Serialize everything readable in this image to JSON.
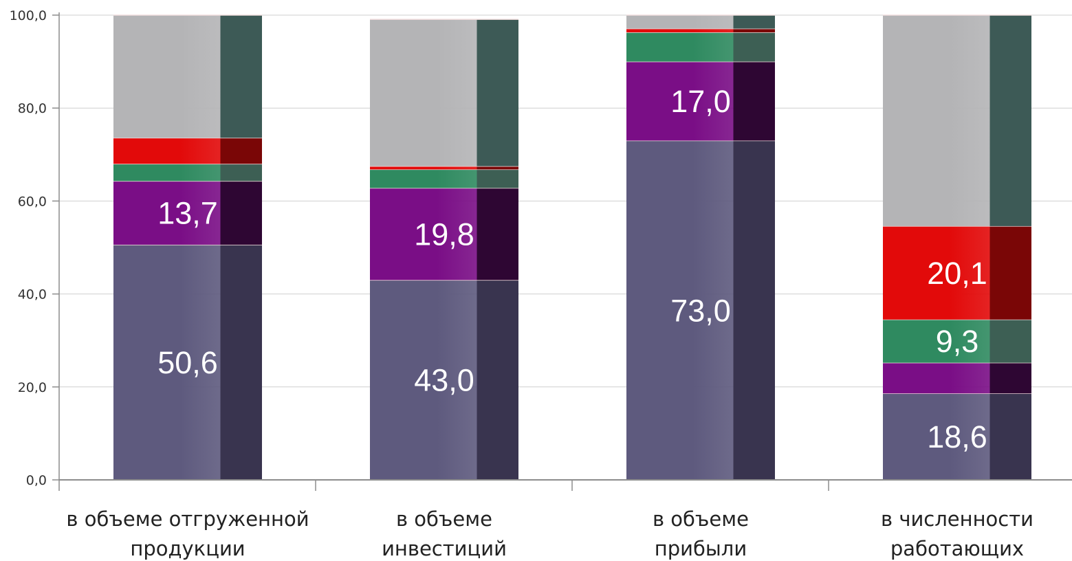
{
  "chart_data": {
    "type": "bar",
    "stacked": true,
    "categories": [
      [
        "в объеме отгруженной",
        "продукции"
      ],
      [
        "в объеме",
        "инвестиций"
      ],
      [
        "в объеме",
        "прибыли"
      ],
      [
        "в численности",
        "работающих"
      ]
    ],
    "ylim": [
      0,
      100
    ],
    "yticks": [
      "0,0",
      "20,0",
      "40,0",
      "60,0",
      "80,0",
      "100,0"
    ],
    "ytick_values": [
      0,
      20,
      40,
      60,
      80,
      100
    ],
    "grid": true,
    "series": [
      {
        "color": "#5e5a7e",
        "dark": "#39344f",
        "values": [
          50.6,
          43.0,
          73.0,
          18.6
        ],
        "labels": [
          "50,6",
          "43,0",
          "73,0",
          "18,6"
        ]
      },
      {
        "color": "#7a0e86",
        "dark": "#2e0633",
        "values": [
          13.7,
          19.8,
          17.0,
          6.6
        ],
        "labels": [
          "13,7",
          "19,8",
          "17,0",
          ""
        ]
      },
      {
        "color": "#2f8a60",
        "dark": "#3d5f54",
        "values": [
          3.7,
          4.0,
          6.3,
          9.3
        ],
        "labels": [
          "",
          "",
          "",
          "9,3"
        ]
      },
      {
        "color": "#e20a0a",
        "dark": "#7a0606",
        "values": [
          5.6,
          0.7,
          0.8,
          20.1
        ],
        "labels": [
          "",
          "",
          "",
          "20,1"
        ]
      },
      {
        "color": "#b4b4b6",
        "dark": "#3d5a56",
        "values": [
          26.4,
          31.6,
          2.9,
          45.4
        ],
        "labels": [
          "",
          "",
          "",
          ""
        ]
      }
    ]
  }
}
